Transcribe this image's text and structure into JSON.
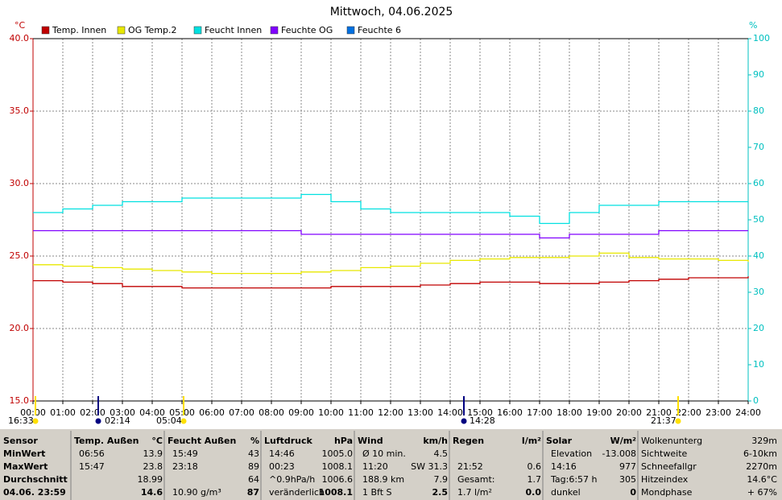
{
  "chart_data": {
    "type": "line",
    "title": "Mittwoch, 04.06.2025",
    "y_label": "°C",
    "y2_label": "%",
    "x": [
      0,
      1,
      2,
      3,
      4,
      5,
      6,
      7,
      8,
      9,
      10,
      11,
      12,
      13,
      14,
      15,
      16,
      17,
      18,
      19,
      20,
      21,
      22,
      23,
      24
    ],
    "xlim": [
      0,
      24
    ],
    "xticks": [
      {
        "value": 0,
        "label": "00:00"
      },
      {
        "value": 1,
        "label": "01:00"
      },
      {
        "value": 2,
        "label": "02:00"
      },
      {
        "value": 3,
        "label": "03:00"
      },
      {
        "value": 4,
        "label": "04:00"
      },
      {
        "value": 5,
        "label": "05:00"
      },
      {
        "value": 6,
        "label": "06:00"
      },
      {
        "value": 7,
        "label": "07:00"
      },
      {
        "value": 8,
        "label": "08:00"
      },
      {
        "value": 9,
        "label": "09:00"
      },
      {
        "value": 10,
        "label": "10:00"
      },
      {
        "value": 11,
        "label": "11:00"
      },
      {
        "value": 12,
        "label": "12:00"
      },
      {
        "value": 13,
        "label": "13:00"
      },
      {
        "value": 14,
        "label": "14:00"
      },
      {
        "value": 15,
        "label": "15:00"
      },
      {
        "value": 16,
        "label": "16:00"
      },
      {
        "value": 17,
        "label": "17:00"
      },
      {
        "value": 18,
        "label": "18:00"
      },
      {
        "value": 19,
        "label": "19:00"
      },
      {
        "value": 20,
        "label": "20:00"
      },
      {
        "value": 21,
        "label": "21:00"
      },
      {
        "value": 22,
        "label": "22:00"
      },
      {
        "value": 23,
        "label": "23:00"
      },
      {
        "value": 24,
        "label": "24:00"
      }
    ],
    "ylim": [
      15,
      40
    ],
    "yticks": [
      {
        "value": 15,
        "label": "15.0"
      },
      {
        "value": 20,
        "label": "20.0"
      },
      {
        "value": 25,
        "label": "25.0"
      },
      {
        "value": 30,
        "label": "30.0"
      },
      {
        "value": 35,
        "label": "35.0"
      },
      {
        "value": 40,
        "label": "40.0"
      }
    ],
    "y2lim": [
      0,
      100
    ],
    "y2ticks": [
      0,
      10,
      20,
      30,
      40,
      50,
      60,
      70,
      80,
      90,
      100
    ],
    "grid": true,
    "series": [
      {
        "name": "Temp. Innen",
        "color": "#c00000",
        "values": [
          23.3,
          23.2,
          23.1,
          22.9,
          22.9,
          22.8,
          22.8,
          22.8,
          22.8,
          22.8,
          22.9,
          22.9,
          22.9,
          23.0,
          23.1,
          23.2,
          23.2,
          23.1,
          23.1,
          23.2,
          23.3,
          23.4,
          23.5,
          23.5,
          23.6
        ]
      },
      {
        "name": "OG Temp.2",
        "color": "#e8e800",
        "values": [
          24.4,
          24.3,
          24.2,
          24.1,
          24.0,
          23.9,
          23.8,
          23.8,
          23.8,
          23.9,
          24.0,
          24.2,
          24.3,
          24.5,
          24.7,
          24.8,
          24.9,
          24.9,
          25.0,
          25.2,
          24.9,
          24.8,
          24.8,
          24.7,
          24.6
        ]
      },
      {
        "name": "Feucht Innen",
        "color": "#00e0e0",
        "axis": "y2",
        "values": [
          52,
          53,
          54,
          55,
          55,
          56,
          56,
          56,
          56,
          57,
          55,
          53,
          52,
          52,
          52,
          52,
          51,
          49,
          52,
          54,
          54,
          55,
          55,
          55,
          55
        ]
      },
      {
        "name": "Feuchte OG",
        "color": "#8000ff",
        "axis": "y2",
        "values": [
          47,
          47,
          47,
          47,
          47,
          47,
          47,
          47,
          47,
          46,
          46,
          46,
          46,
          46,
          46,
          46,
          46,
          45,
          46,
          46,
          46,
          47,
          47,
          47,
          47
        ]
      },
      {
        "name": "Feuchte 6",
        "color": "#0070e0",
        "axis": "y2",
        "values": [
          null,
          null,
          null,
          null,
          null,
          null,
          null,
          null,
          null,
          null,
          null,
          null,
          null,
          null,
          null,
          null,
          null,
          null,
          null,
          null,
          null,
          null,
          null,
          null,
          null
        ]
      }
    ],
    "markers": [
      "16:33",
      "02:14",
      "05:04",
      "14:28",
      "21:37"
    ]
  },
  "table": {
    "groups": [
      {
        "title": "Sensor",
        "rows": [
          {
            "l": "MinWert"
          },
          {
            "l": "MaxWert"
          },
          {
            "l": "Durchschnitt"
          },
          {
            "l": "04.06. 23:59"
          }
        ]
      },
      {
        "title": "Temp. Außen",
        "unit": "°C",
        "rows": [
          {
            "l": "06:56",
            "r": "13.9"
          },
          {
            "l": "15:47",
            "r": "23.8"
          },
          {
            "r": "18.99"
          },
          {
            "r": "14.6"
          }
        ]
      },
      {
        "title": "Feucht Außen",
        "unit": "%",
        "rows": [
          {
            "l": "15:49",
            "r": "43"
          },
          {
            "l": "23:18",
            "r": "89"
          },
          {
            "r": "64"
          },
          {
            "l": "10.90 g/m³",
            "r": "87"
          }
        ]
      },
      {
        "title": "Luftdruck",
        "unit": "hPa",
        "rows": [
          {
            "l": "14:46",
            "r": "1005.0"
          },
          {
            "l": "00:23",
            "r": "1008.1"
          },
          {
            "l": "^0.9hPa/h",
            "r": "1006.6"
          },
          {
            "l": "veränderlich",
            "r": "1008.1"
          }
        ]
      },
      {
        "title": "Wind",
        "unit": "km/h",
        "rows": [
          {
            "l": "Ø 10 min.",
            "r": "4.5"
          },
          {
            "l": "11:20",
            "r": "SW 31.3"
          },
          {
            "l": "188.9 km",
            "r": "7.9"
          },
          {
            "l": "1 Bft S",
            "r": "2.5"
          }
        ]
      },
      {
        "title": "Regen",
        "unit": "l/m²",
        "rows": [
          {},
          {
            "l": "21:52",
            "r": "0.6"
          },
          {
            "l": "Gesamt:",
            "r": "1.7"
          },
          {
            "l": "1.7 l/m²",
            "r": "0.0"
          }
        ]
      },
      {
        "title": "Solar",
        "unit": "W/m²",
        "rows": [
          {
            "l": "Elevation",
            "r": "-13.008"
          },
          {
            "l": "14:16",
            "r": "977"
          },
          {
            "l": "Tag:6:57 h",
            "r": "305"
          },
          {
            "l": "dunkel",
            "r": "0"
          }
        ]
      },
      {
        "rows": [
          {
            "l": "Wolkenunterg",
            "r": "329m"
          },
          {
            "l": "Sichtweite",
            "r": "6-10km"
          },
          {
            "l": "Schneefallgr",
            "r": "2270m"
          },
          {
            "l": "Hitzeindex",
            "r": "14.6°C"
          },
          {
            "l": "Mondphase",
            "r": "+ 67%"
          }
        ]
      }
    ]
  }
}
